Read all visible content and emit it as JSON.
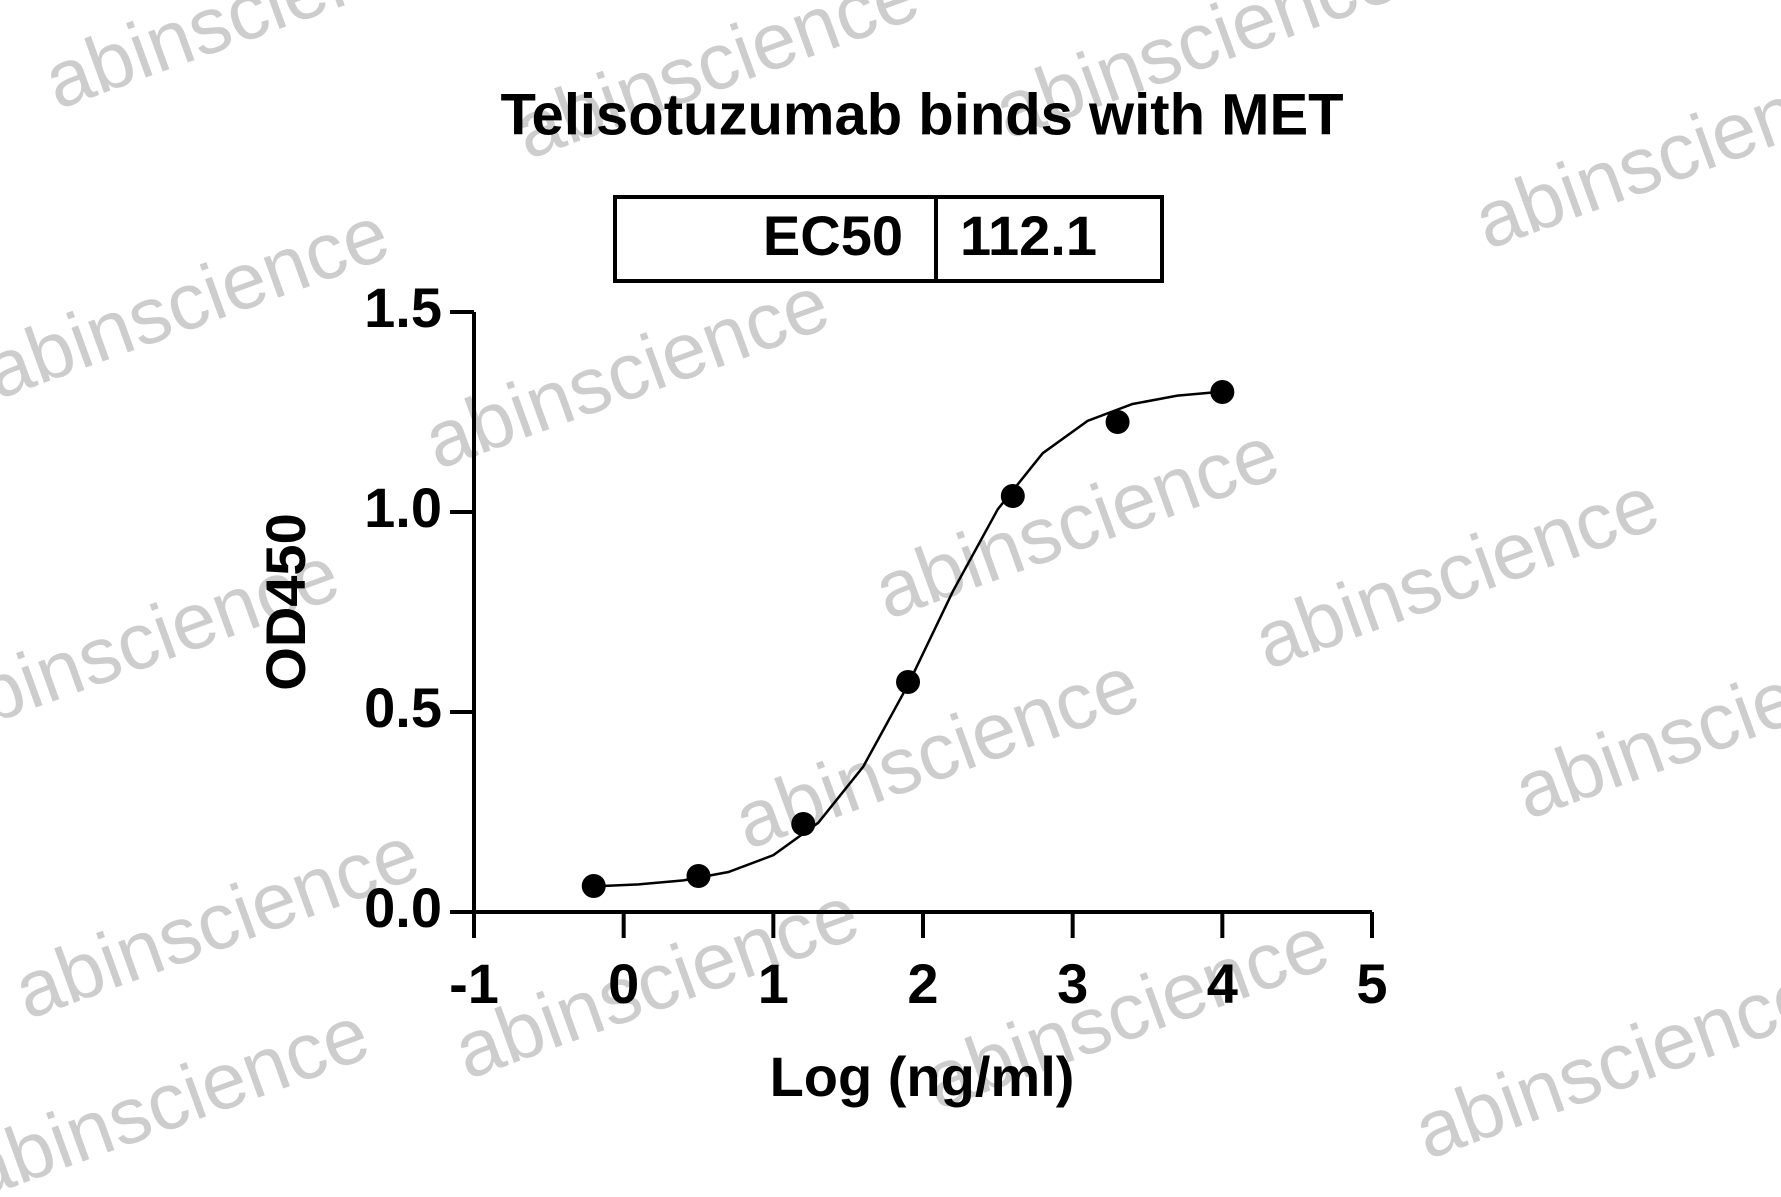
{
  "chart_data": {
    "type": "scatter",
    "title": "Telisotuzumab binds with MET",
    "xlabel": "Log (ng/ml)",
    "ylabel": "OD450",
    "ec50_label": "EC50",
    "ec50_value": 112.1,
    "watermark": "abinscience",
    "x": [
      -0.2,
      0.5,
      1.2,
      1.9,
      2.6,
      3.3,
      4.0
    ],
    "values": [
      0.065,
      0.09,
      0.22,
      0.575,
      1.04,
      1.225,
      1.3
    ],
    "color": "#000000",
    "curve": {
      "x": [
        -0.2,
        0.1,
        0.4,
        0.7,
        1.0,
        1.3,
        1.6,
        1.9,
        2.2,
        2.5,
        2.8,
        3.1,
        3.4,
        3.7,
        4.0
      ],
      "y": [
        0.064,
        0.069,
        0.079,
        0.1,
        0.142,
        0.223,
        0.363,
        0.568,
        0.802,
        1.007,
        1.147,
        1.228,
        1.27,
        1.291,
        1.301
      ]
    },
    "xlim": [
      -1,
      5
    ],
    "xticks": [
      -1,
      0,
      1,
      2,
      3,
      4,
      5
    ],
    "ylim": [
      0,
      1.5
    ],
    "yticks": [
      {
        "value": 0,
        "label": "0.0"
      },
      {
        "value": 0.5,
        "label": "0.5"
      },
      {
        "value": 1,
        "label": "1.0"
      },
      {
        "value": 1.5,
        "label": "1.5"
      }
    ]
  }
}
